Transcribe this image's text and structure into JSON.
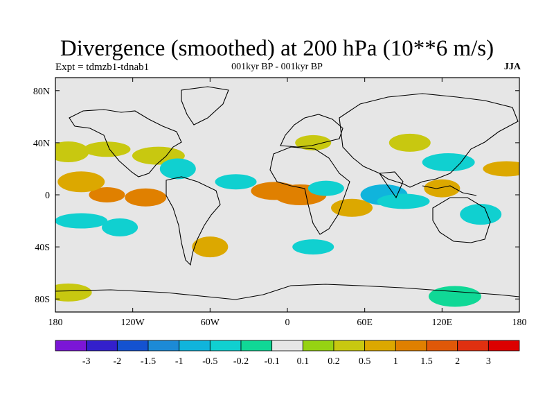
{
  "title": "Divergence (smoothed) at 200 hPa (10**6 m/s)",
  "experiment": "Expt = tdmzb1-tdnab1",
  "period": "001kyr BP - 001kyr BP",
  "season": "JJA",
  "chart_data": {
    "type": "heatmap",
    "projection": "cylindrical-equidistant",
    "variable": "Divergence (smoothed) at 200 hPa",
    "units": "10**6 m/s",
    "lon_range": [
      -180,
      180
    ],
    "lat_range": [
      -90,
      90
    ],
    "x_ticks": [
      "180",
      "120W",
      "60W",
      "0",
      "60E",
      "120E",
      "180"
    ],
    "x_tick_values": [
      -180,
      -120,
      -60,
      0,
      60,
      120,
      180
    ],
    "y_ticks": [
      "80N",
      "40N",
      "0",
      "40S",
      "80S"
    ],
    "y_tick_values": [
      80,
      40,
      0,
      -40,
      -80
    ],
    "colorbar": {
      "levels": [
        "-3",
        "-2",
        "-1.5",
        "-1",
        "-0.5",
        "-0.2",
        "-0.1",
        "0.1",
        "0.2",
        "0.5",
        "1",
        "1.5",
        "2",
        "3"
      ],
      "colors": [
        "#7b16d6",
        "#3320cc",
        "#1452d0",
        "#1c8ad6",
        "#10b4dc",
        "#10d0d0",
        "#10d896",
        "#e6e6e6",
        "#96d212",
        "#c8c810",
        "#dca800",
        "#e08000",
        "#e05808",
        "#e03010",
        "#dc0000"
      ]
    },
    "regions": [
      {
        "lon": -140,
        "lat": 0,
        "value": 1.0
      },
      {
        "lon": -110,
        "lat": -2,
        "value": 1.0
      },
      {
        "lon": -160,
        "lat": 10,
        "value": 0.5
      },
      {
        "lon": -160,
        "lat": -20,
        "value": -0.5
      },
      {
        "lon": -130,
        "lat": -25,
        "value": -0.5
      },
      {
        "lon": -170,
        "lat": 33,
        "value": 0.2
      },
      {
        "lon": -140,
        "lat": 35,
        "value": 0.2
      },
      {
        "lon": -100,
        "lat": 30,
        "value": 0.2
      },
      {
        "lon": -85,
        "lat": 20,
        "value": -0.5
      },
      {
        "lon": -40,
        "lat": 10,
        "value": -0.5
      },
      {
        "lon": -10,
        "lat": 3,
        "value": 1.0
      },
      {
        "lon": 10,
        "lat": 0,
        "value": 1.0
      },
      {
        "lon": 30,
        "lat": 5,
        "value": -0.5
      },
      {
        "lon": 50,
        "lat": -10,
        "value": 0.5
      },
      {
        "lon": 75,
        "lat": 0,
        "value": -1.0
      },
      {
        "lon": 90,
        "lat": -5,
        "value": -0.5
      },
      {
        "lon": 120,
        "lat": 5,
        "value": 0.5
      },
      {
        "lon": 150,
        "lat": -15,
        "value": -0.5
      },
      {
        "lon": 170,
        "lat": 20,
        "value": 0.5
      },
      {
        "lon": 125,
        "lat": 25,
        "value": -0.5
      },
      {
        "lon": -60,
        "lat": -40,
        "value": 0.5
      },
      {
        "lon": 20,
        "lat": -40,
        "value": -0.5
      },
      {
        "lon": -170,
        "lat": -75,
        "value": 0.2
      },
      {
        "lon": 130,
        "lat": -78,
        "value": -0.2
      },
      {
        "lon": 20,
        "lat": 40,
        "value": 0.2
      },
      {
        "lon": 95,
        "lat": 40,
        "value": 0.2
      }
    ]
  }
}
